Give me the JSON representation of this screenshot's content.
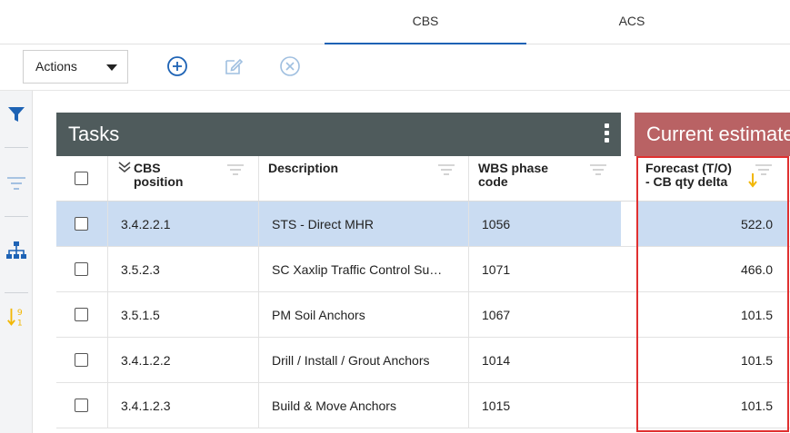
{
  "tabs": [
    {
      "label": "CBS",
      "active": true
    },
    {
      "label": "ACS",
      "active": false
    }
  ],
  "toolbar": {
    "actions_label": "Actions",
    "icons": [
      "add-circle-icon",
      "edit-icon",
      "delete-circle-icon"
    ]
  },
  "rail": {
    "icons": [
      "filter-icon",
      "filter-list-icon",
      "hierarchy-icon",
      "sort-numeric-icon"
    ]
  },
  "tasks_panel": {
    "title": "Tasks"
  },
  "estimate_panel": {
    "title": "Current estimate"
  },
  "columns": {
    "position": "CBS position",
    "position_l1": "CBS",
    "position_l2": "position",
    "description": "Description",
    "wbs_l1": "WBS phase",
    "wbs_l2": "code",
    "forecast_l1": "Forecast (T/O)",
    "forecast_l2": "- CB qty delta"
  },
  "rows": [
    {
      "position": "3.4.2.2.1",
      "description": "STS - Direct MHR",
      "wbs": "1056",
      "forecast": "522.0",
      "selected": true
    },
    {
      "position": "3.5.2.3",
      "description": "SC Xaxlip Traffic Control Su…",
      "wbs": "1071",
      "forecast": "466.0",
      "selected": false
    },
    {
      "position": "3.5.1.5",
      "description": "PM Soil Anchors",
      "wbs": "1067",
      "forecast": "101.5",
      "selected": false
    },
    {
      "position": "3.4.1.2.2",
      "description": "Drill / Install / Grout Anchors",
      "wbs": "1014",
      "forecast": "101.5",
      "selected": false
    },
    {
      "position": "3.4.1.2.3",
      "description": "Build & Move Anchors",
      "wbs": "1015",
      "forecast": "101.5",
      "selected": false
    }
  ],
  "colors": {
    "accent": "#1e63b5",
    "tasks_header": "#4f5b5c",
    "estimate_header": "#b96264",
    "selected_row": "#cadcf2",
    "sort_arrow": "#f2b705",
    "highlight": "#e03030"
  }
}
